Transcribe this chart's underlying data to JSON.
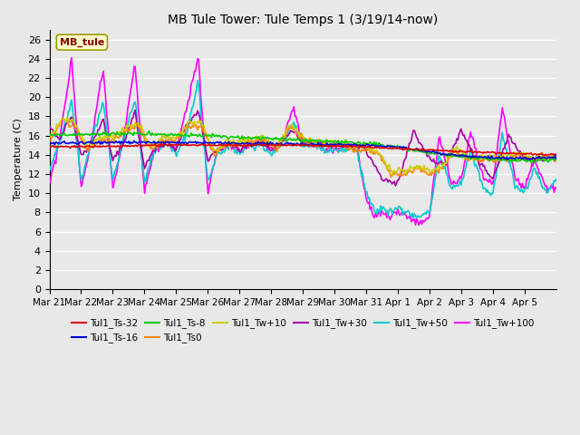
{
  "title": "MB Tule Tower: Tule Temps 1 (3/19/14-now)",
  "ylabel": "Temperature (C)",
  "ylim": [
    0,
    27
  ],
  "yticks": [
    0,
    2,
    4,
    6,
    8,
    10,
    12,
    14,
    16,
    18,
    20,
    22,
    24,
    26
  ],
  "legend_label": "MB_tule",
  "series": {
    "Tul1_Ts-32": {
      "color": "#dd0000",
      "lw": 1.2
    },
    "Tul1_Ts-16": {
      "color": "#0000dd",
      "lw": 1.2
    },
    "Tul1_Ts-8": {
      "color": "#00cc00",
      "lw": 1.2
    },
    "Tul1_Ts0": {
      "color": "#ff8800",
      "lw": 1.2
    },
    "Tul1_Tw+10": {
      "color": "#cccc00",
      "lw": 1.2
    },
    "Tul1_Tw+30": {
      "color": "#aa00aa",
      "lw": 1.2
    },
    "Tul1_Tw+50": {
      "color": "#00cccc",
      "lw": 1.2
    },
    "Tul1_Tw+100": {
      "color": "#ff00ff",
      "lw": 1.2
    }
  },
  "background_color": "#e8e8e8",
  "grid_color": "#ffffff",
  "xtick_labels": [
    "Mar 21",
    "Mar 22",
    "Mar 23",
    "Mar 24",
    "Mar 25",
    "Mar 26",
    "Mar 27",
    "Mar 28",
    "Mar 29",
    "Mar 30",
    "Mar 31",
    "Apr 1",
    "Apr 2",
    "Apr 3",
    "Apr 4",
    "Apr 5"
  ]
}
